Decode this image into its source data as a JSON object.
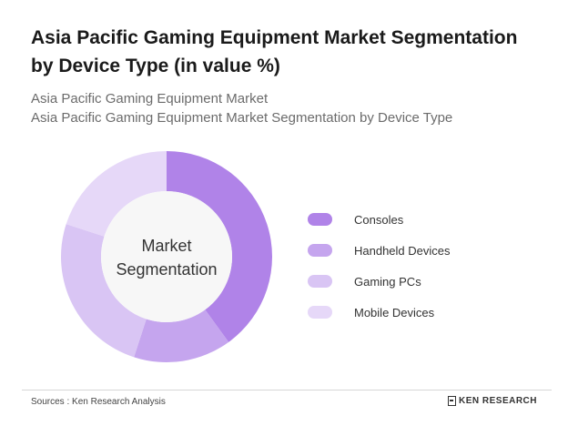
{
  "header": {
    "title": "Asia Pacific Gaming Equipment Market Segmentation by Device Type (in value %)",
    "subtitle_line1": "Asia Pacific Gaming Equipment Market",
    "subtitle_line2": "Asia Pacific Gaming Equipment Market Segmentation by Device Type"
  },
  "chart_data": {
    "type": "pie",
    "variant": "donut",
    "center_label_line1": "Market",
    "center_label_line2": "Segmentation",
    "categories": [
      "Consoles",
      "Handheld Devices",
      "Gaming PCs",
      "Mobile Devices"
    ],
    "values": [
      40,
      15,
      25,
      20
    ],
    "colors": [
      "#b083e8",
      "#c5a5ee",
      "#d9c5f4",
      "#e6d8f8"
    ],
    "legend_position": "right"
  },
  "footer": {
    "source": "Sources : Ken Research Analysis",
    "brand": "KEN RESEARCH"
  }
}
